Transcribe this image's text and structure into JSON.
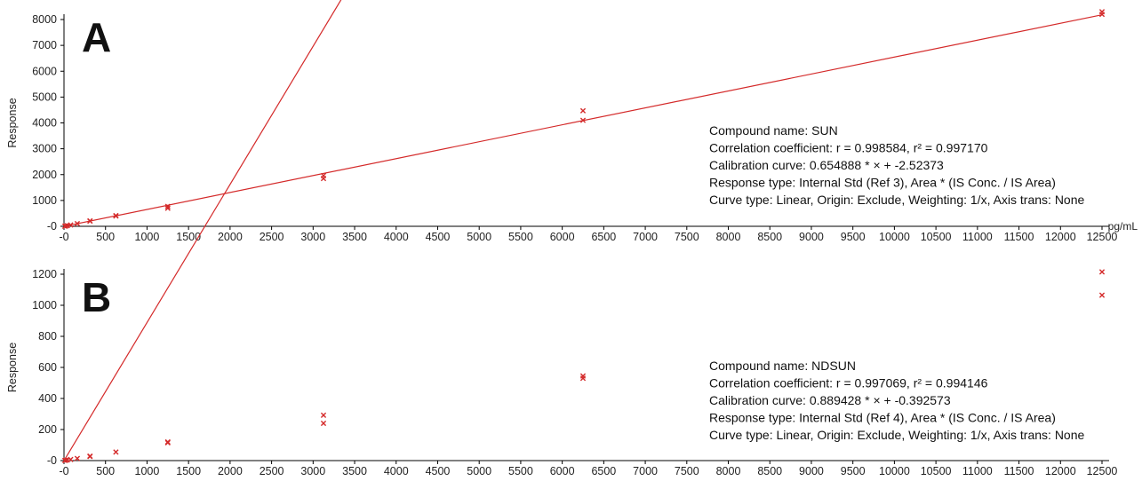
{
  "chart_data": [
    {
      "panel": "A",
      "type": "scatter",
      "ylabel": "Response",
      "x_unit": "pg/mL",
      "xlim": [
        0,
        12500
      ],
      "ylim": [
        0,
        8000
      ],
      "xticks": [
        "-0",
        "500",
        "1000",
        "1500",
        "2000",
        "2500",
        "3000",
        "3500",
        "4000",
        "4500",
        "5000",
        "5500",
        "6000",
        "6500",
        "7000",
        "7500",
        "8000",
        "8500",
        "9000",
        "9500",
        "10000",
        "10500",
        "11000",
        "11500",
        "12000",
        "12500"
      ],
      "yticks": [
        "-0",
        "1000",
        "2000",
        "3000",
        "4000",
        "5000",
        "6000",
        "7000",
        "8000"
      ],
      "fit": {
        "slope": 0.654888,
        "intercept": -2.52373
      },
      "points": [
        {
          "x": 10,
          "y": 5
        },
        {
          "x": 20,
          "y": 12
        },
        {
          "x": 40,
          "y": 25
        },
        {
          "x": 80,
          "y": 52
        },
        {
          "x": 160,
          "y": 105
        },
        {
          "x": 313,
          "y": 200
        },
        {
          "x": 313,
          "y": 210
        },
        {
          "x": 625,
          "y": 400
        },
        {
          "x": 625,
          "y": 415
        },
        {
          "x": 1250,
          "y": 700
        },
        {
          "x": 1250,
          "y": 770
        },
        {
          "x": 3125,
          "y": 1850
        },
        {
          "x": 3125,
          "y": 1960
        },
        {
          "x": 6250,
          "y": 4100
        },
        {
          "x": 6250,
          "y": 4470
        },
        {
          "x": 12500,
          "y": 8200
        },
        {
          "x": 12500,
          "y": 8300
        }
      ],
      "info": {
        "compound": "Compound name: SUN",
        "correlation": "Correlation coefficient: r = 0.998584, r² = 0.997170",
        "calibration": "Calibration curve: 0.654888 * × + -2.52373",
        "response": "Response type: Internal Std (Ref 3), Area * (IS Conc. / IS Area)",
        "curve": "Curve type: Linear, Origin: Exclude, Weighting: 1/x, Axis trans: None"
      }
    },
    {
      "panel": "B",
      "type": "scatter",
      "ylabel": "Response",
      "xlim": [
        0,
        12500
      ],
      "ylim": [
        0,
        1200
      ],
      "xticks": [
        "-0",
        "500",
        "1000",
        "1500",
        "2000",
        "2500",
        "3000",
        "3500",
        "4000",
        "4500",
        "5000",
        "5500",
        "6000",
        "6500",
        "7000",
        "7500",
        "8000",
        "8500",
        "9000",
        "9500",
        "10000",
        "10500",
        "11000",
        "11500",
        "12000",
        "12500"
      ],
      "yticks": [
        "-0",
        "200",
        "400",
        "600",
        "800",
        "1000",
        "1200"
      ],
      "fit": {
        "slope": 0.889428,
        "intercept": -0.392573
      },
      "points": [
        {
          "x": 10,
          "y": 1
        },
        {
          "x": 20,
          "y": 2
        },
        {
          "x": 40,
          "y": 4
        },
        {
          "x": 80,
          "y": 7
        },
        {
          "x": 160,
          "y": 14
        },
        {
          "x": 313,
          "y": 26
        },
        {
          "x": 313,
          "y": 29
        },
        {
          "x": 625,
          "y": 55
        },
        {
          "x": 1250,
          "y": 115
        },
        {
          "x": 1250,
          "y": 120
        },
        {
          "x": 3125,
          "y": 240
        },
        {
          "x": 3125,
          "y": 292
        },
        {
          "x": 6250,
          "y": 530
        },
        {
          "x": 6250,
          "y": 545
        },
        {
          "x": 12500,
          "y": 1065
        },
        {
          "x": 12500,
          "y": 1215
        }
      ],
      "info": {
        "compound": "Compound name: NDSUN",
        "correlation": "Correlation coefficient: r = 0.997069, r² = 0.994146",
        "calibration": "Calibration curve: 0.889428 * × + -0.392573",
        "response": "Response type: Internal Std (Ref 4), Area * (IS Conc. / IS Area)",
        "curve": "Curve type: Linear, Origin: Exclude, Weighting: 1/x, Axis trans: None"
      }
    }
  ],
  "colors": {
    "series": "#d42a2a",
    "axis": "#000000"
  }
}
